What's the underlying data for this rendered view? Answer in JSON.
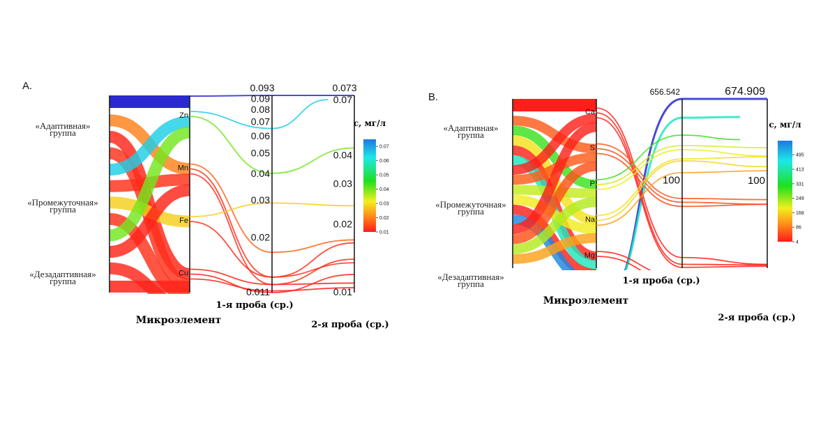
{
  "chart_data": [
    {
      "type": "parallel-sets",
      "panel_label": "A.",
      "groups": [
        "«Адаптивная»\nгруппа",
        "«Промежуточная»\nгруппа",
        "«Дезадаптивная»\nгруппа"
      ],
      "elements": [
        "Zn",
        "Mn",
        "Fe",
        "Cu"
      ],
      "element_axis_label": "Микроэлемент",
      "axis1_label": "1-я проба (ср.)",
      "axis2_label": "2-я проба (ср.)",
      "axis1_scale": "log",
      "axis1_range": [
        0.011,
        0.093
      ],
      "axis2_scale": "log",
      "axis2_range": [
        0.01,
        0.073
      ],
      "axis1_ticks": [
        "0.093",
        "0.09",
        "0.08",
        "0.07",
        "0.06",
        "0.05",
        "0.04",
        "0.03",
        "0.02",
        "0.011"
      ],
      "axis2_ticks": [
        "0.073",
        "0.07",
        "0.04",
        "0.03",
        "0.02",
        "0.01"
      ],
      "colorbar": {
        "title": "с, мг/л",
        "range": [
          0.01,
          0.075
        ],
        "ticks": [
          "0.01",
          "0.02",
          "0.03",
          "0.04",
          "0.05",
          "0.06",
          "0.07"
        ]
      },
      "top_band_value": 0.093,
      "bottom_band_value": 0.011,
      "ribbons": [
        {
          "group": 0,
          "element": 1,
          "c": 0.02
        },
        {
          "group": 0,
          "element": 3,
          "c": 0.011
        },
        {
          "group": 0,
          "element": 3,
          "c": 0.012
        },
        {
          "group": 0,
          "element": 0,
          "c": 0.065
        },
        {
          "group": 1,
          "element": 1,
          "c": 0.012
        },
        {
          "group": 1,
          "element": 2,
          "c": 0.028
        },
        {
          "group": 1,
          "element": 3,
          "c": 0.012
        },
        {
          "group": 2,
          "element": 0,
          "c": 0.04
        },
        {
          "group": 2,
          "element": 1,
          "c": 0.011
        },
        {
          "group": 2,
          "element": 3,
          "c": 0.011
        }
      ],
      "lines": [
        {
          "element": -1,
          "v1": 0.093,
          "v2": 0.073,
          "c": 0.093
        },
        {
          "element": 0,
          "v1": 0.065,
          "v2": 0.07,
          "c": 0.065,
          "partial": true
        },
        {
          "element": 0,
          "v1": 0.04,
          "v2": 0.043,
          "c": 0.04
        },
        {
          "element": 1,
          "v1": 0.017,
          "v2": 0.017,
          "c": 0.017
        },
        {
          "element": 1,
          "v1": 0.013,
          "v2": 0.0165,
          "c": 0.012
        },
        {
          "element": 1,
          "v1": 0.012,
          "v2": 0.014,
          "c": 0.012
        },
        {
          "element": 2,
          "v1": 0.029,
          "v2": 0.024,
          "c": 0.028
        },
        {
          "element": 2,
          "v1": 0.013,
          "v2": 0.0135,
          "c": 0.012
        },
        {
          "element": 3,
          "v1": 0.012,
          "v2": 0.011,
          "c": 0.011
        },
        {
          "element": 3,
          "v1": 0.011,
          "v2": 0.012,
          "c": 0.011
        },
        {
          "element": 3,
          "v1": 0.0112,
          "v2": 0.0105,
          "c": 0.011
        }
      ]
    },
    {
      "type": "parallel-sets",
      "panel_label": "B.",
      "groups": [
        "«Адаптивная»\nгруппа",
        "«Промежуточная»\nгруппа",
        "«Дезадаптивная»\nгруппа"
      ],
      "elements": [
        "Ca",
        "S",
        "P",
        "Na",
        "Mg"
      ],
      "element_axis_label": "Микроэлемент",
      "axis1_label": "1-я проба (ср.)",
      "axis2_label": "2-я проба (ср.)",
      "axis1_scale": "log",
      "axis1_range": [
        10,
        656.542
      ],
      "axis2_scale": "log",
      "axis2_range": [
        10,
        674.909
      ],
      "axis1_ticks": [
        "656.542",
        "100"
      ],
      "axis2_ticks": [
        "674.909",
        "100"
      ],
      "colorbar": {
        "title": "с, мг/л",
        "range": [
          4,
          574
        ],
        "ticks": [
          "4",
          "86",
          "168",
          "249",
          "331",
          "413",
          "495"
        ]
      },
      "top_band_value": 8,
      "ribbons": [
        {
          "group": 0,
          "element": 1,
          "c": 60
        },
        {
          "group": 0,
          "element": 2,
          "c": 300
        },
        {
          "group": 0,
          "element": 3,
          "c": 180
        },
        {
          "group": 0,
          "element": 4,
          "c": 12
        },
        {
          "group": 1,
          "element": 4,
          "c": 430
        },
        {
          "group": 1,
          "element": 0,
          "c": 10
        },
        {
          "group": 1,
          "element": 1,
          "c": 60
        },
        {
          "group": 1,
          "element": 2,
          "c": 220
        },
        {
          "group": 1,
          "element": 3,
          "c": 190
        },
        {
          "group": 1,
          "element": 4,
          "c": 10
        },
        {
          "group": 2,
          "element": 4,
          "c": 560
        },
        {
          "group": 2,
          "element": 0,
          "c": 10
        },
        {
          "group": 2,
          "element": 1,
          "c": 50
        },
        {
          "group": 2,
          "element": 2,
          "c": 230
        },
        {
          "group": 2,
          "element": 3,
          "c": 120
        }
      ],
      "lines": [
        {
          "element": -1,
          "v1": 656.542,
          "v2": 674.909,
          "c": 620
        },
        {
          "element": -1,
          "v1": 412,
          "v2": 430,
          "c": 430,
          "partial": true
        },
        {
          "element": 0,
          "v1": 13,
          "v2": 11,
          "c": 12
        },
        {
          "element": 0,
          "v1": 11,
          "v2": 10.8,
          "c": 10
        },
        {
          "element": 0,
          "v1": 10.2,
          "v2": 10.5,
          "c": 10
        },
        {
          "element": 1,
          "v1": 56,
          "v2": 55,
          "c": 55
        },
        {
          "element": 1,
          "v1": 51,
          "v2": 49,
          "c": 50
        },
        {
          "element": 1,
          "v1": 46,
          "v2": 49,
          "c": 45
        },
        {
          "element": 2,
          "v1": 268,
          "v2": 245,
          "c": 300,
          "partial": true
        },
        {
          "element": 2,
          "v1": 207,
          "v2": 200,
          "c": 210
        },
        {
          "element": 2,
          "v1": 187,
          "v2": 163,
          "c": 195
        },
        {
          "element": 3,
          "v1": 149,
          "v2": 160,
          "c": 180
        },
        {
          "element": 3,
          "v1": 142,
          "v2": 125,
          "c": 170
        },
        {
          "element": 3,
          "v1": 106,
          "v2": 113,
          "c": 120
        },
        {
          "element": 4,
          "v1": 8,
          "v2": 9,
          "c": 10
        },
        {
          "element": 4,
          "v1": 7,
          "v2": 9,
          "c": 10
        }
      ]
    }
  ]
}
